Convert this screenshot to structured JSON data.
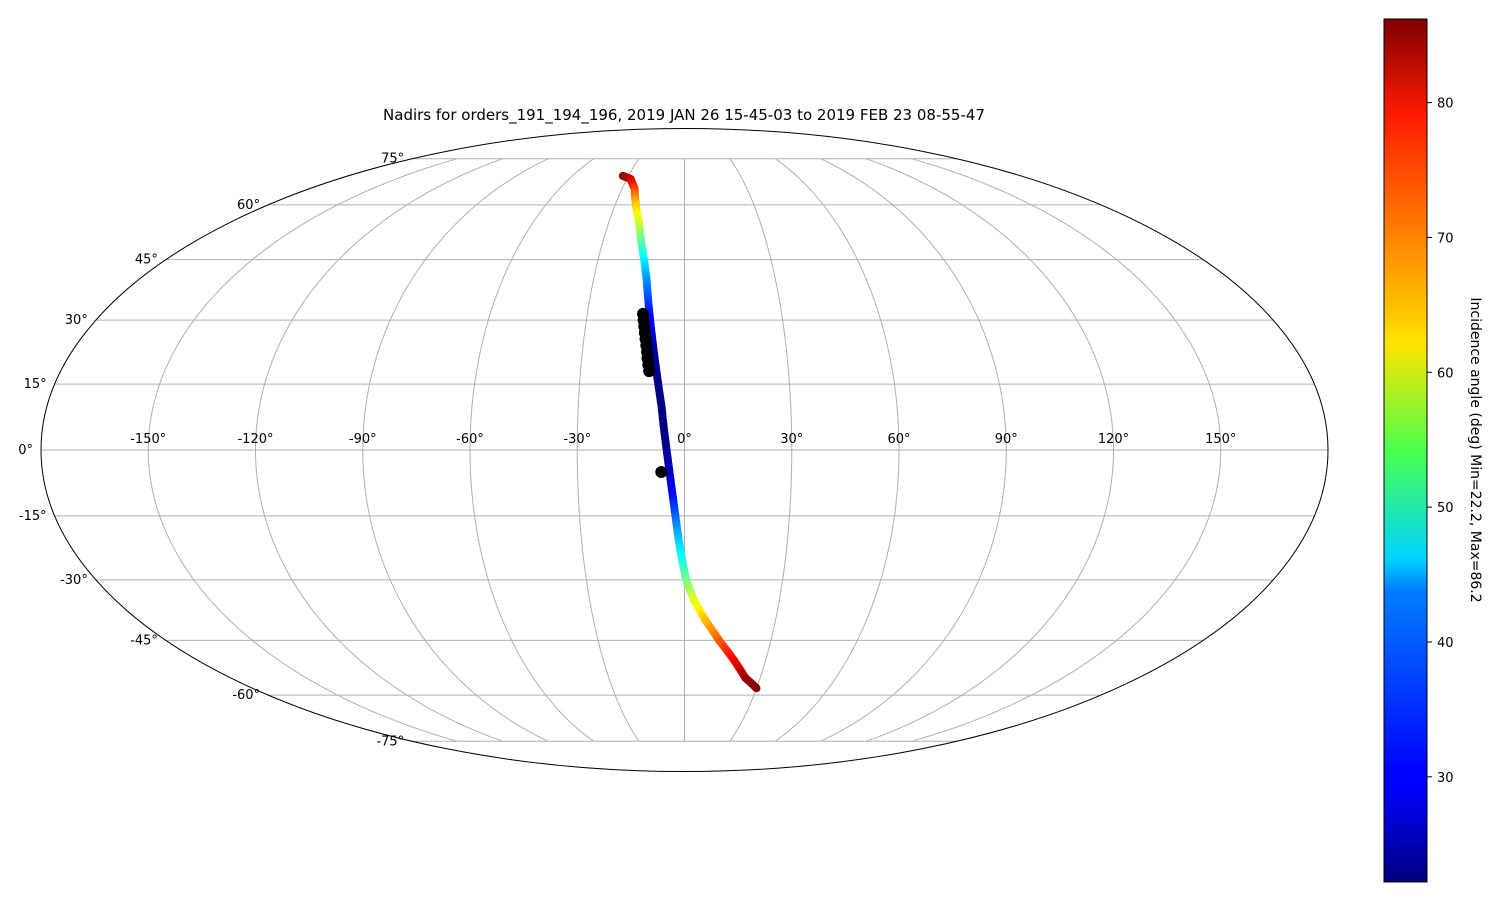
{
  "chart_data": {
    "type": "scatter",
    "projection": "mollweide",
    "title": "Nadirs for orders_191_194_196, 2019 JAN 26 15-45-03 to 2019 FEB 23 08-55-47",
    "x_range": [
      -180,
      180
    ],
    "y_range": [
      -75,
      75
    ],
    "grid": true,
    "lon_ticks": [
      -150,
      -120,
      -90,
      -60,
      -30,
      0,
      30,
      60,
      90,
      120,
      150
    ],
    "lon_tick_labels": [
      "-150°",
      "-120°",
      "-90°",
      "-60°",
      "-30°",
      "0°",
      "30°",
      "60°",
      "90°",
      "120°",
      "150°"
    ],
    "lat_ticks": [
      75,
      60,
      45,
      30,
      15,
      0,
      -15,
      -30,
      -45,
      -60,
      -75
    ],
    "lat_tick_labels": [
      "75°",
      "60°",
      "45°",
      "30°",
      "15°",
      "0°",
      "-15°",
      "-30°",
      "-45°",
      "-60°",
      "-75°"
    ],
    "track": {
      "lon": [
        -33,
        -28,
        -24,
        -21,
        -18,
        -16,
        -14,
        -12.5,
        -11.5,
        -10.5,
        -9.5,
        -8.5,
        -7.5,
        -6.5,
        -5.8,
        -5.0,
        -4.2,
        -3.4,
        -2.6,
        -1.8,
        -0.8,
        0.5,
        3.0,
        7.0,
        12.0,
        18.0,
        24.0,
        30.0
      ],
      "lat": [
        69,
        68,
        65,
        60,
        55,
        50,
        45,
        40,
        35,
        30,
        25,
        20,
        15,
        10,
        5,
        0,
        -5,
        -10,
        -15,
        -20,
        -25,
        -30,
        -35,
        -40,
        -45,
        -50,
        -55,
        -58
      ],
      "incidence_deg": [
        86,
        82,
        75,
        66,
        60,
        53,
        46,
        40,
        35,
        30,
        26,
        23.5,
        22.5,
        22.2,
        22.3,
        23.5,
        26,
        30,
        36,
        42,
        47,
        53,
        60,
        66,
        72,
        78,
        84,
        86
      ]
    },
    "selected_points": {
      "lon": [
        -12.8,
        -12.5,
        -12.2,
        -11.9,
        -11.6,
        -11.3,
        -11.0,
        -10.8,
        -10.5,
        -10.2,
        -6.5
      ],
      "lat": [
        31.5,
        30.0,
        28.5,
        27.0,
        25.5,
        24.0,
        22.5,
        21.0,
        19.5,
        18.0,
        -5.0
      ],
      "color": "#000000"
    },
    "colorbar": {
      "label": "Incidence angle (deg) Min=22.2, Max=86.2",
      "min": 22.2,
      "max": 86.2,
      "ticks": [
        30,
        40,
        50,
        60,
        70,
        80
      ],
      "tick_labels": [
        "30",
        "40",
        "50",
        "60",
        "70",
        "80"
      ],
      "colormap": "jet",
      "placement": "right"
    }
  }
}
